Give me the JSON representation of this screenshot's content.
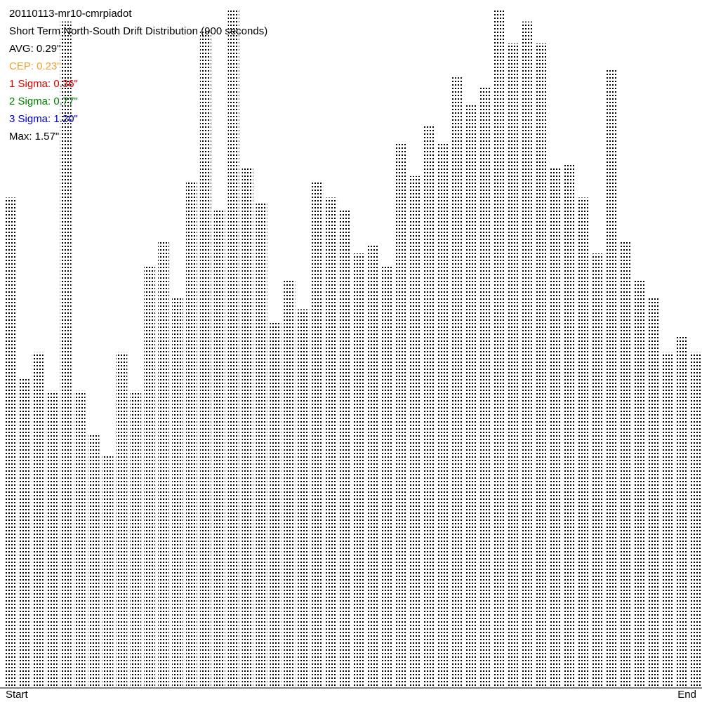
{
  "chart_data": {
    "type": "dotcolumns",
    "title": "20110113-mr10-cmrpiadot",
    "subtitle": "Short Term North-South Drift Distribution (900 seconds)",
    "stats": [
      {
        "text": "AVG: 0.29\"",
        "color": "#000000"
      },
      {
        "text": "CEP: 0.23\"",
        "color": "#f0a030"
      },
      {
        "text": "1 Sigma: 0.36\"",
        "color": "#e00000"
      },
      {
        "text": "2 Sigma: 0.77\"",
        "color": "#008000"
      },
      {
        "text": "3 Sigma: 1.20\"",
        "color": "#0000d0"
      },
      {
        "text": "Max: 1.57\"",
        "color": "#000000"
      }
    ],
    "x_labels": [
      "Start",
      "End"
    ],
    "color": "#000000",
    "ylim": [
      0,
      1.6
    ],
    "values": [
      1.14,
      0.72,
      0.78,
      0.69,
      1.55,
      0.69,
      0.59,
      0.54,
      0.78,
      0.69,
      0.98,
      1.04,
      0.91,
      1.18,
      1.53,
      1.11,
      1.58,
      1.21,
      1.13,
      0.85,
      0.95,
      0.88,
      1.18,
      1.14,
      1.11,
      1.01,
      1.03,
      0.98,
      1.27,
      1.19,
      1.31,
      1.27,
      1.42,
      1.36,
      1.4,
      1.58,
      1.5,
      1.55,
      1.5,
      1.21,
      1.22,
      1.14,
      1.01,
      1.44,
      1.04,
      0.95,
      0.91,
      0.78,
      0.82,
      0.78
    ]
  }
}
